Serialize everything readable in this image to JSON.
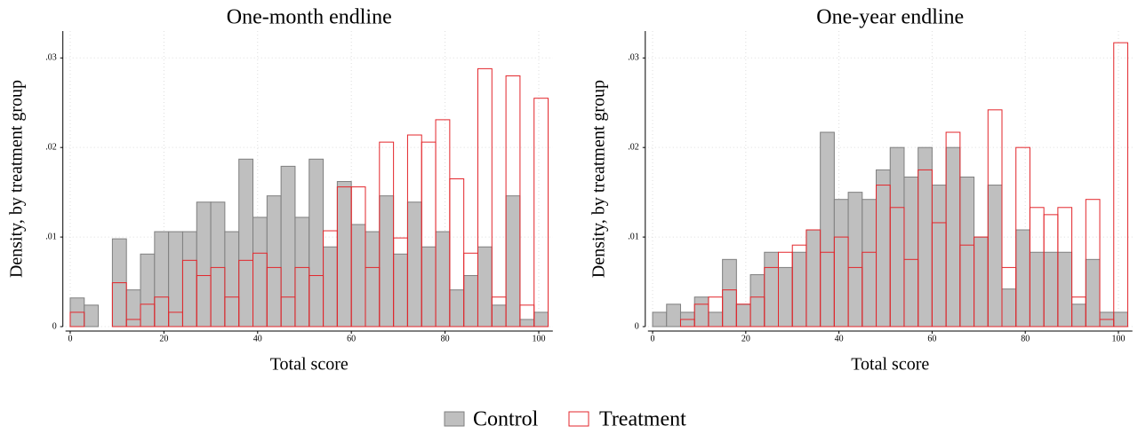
{
  "chart_data": [
    {
      "type": "histogram",
      "title": "One-month endline",
      "xlabel": "Total score",
      "ylabel": "Density, by treatment group",
      "bins": [
        0,
        3,
        6,
        9,
        12,
        15,
        18,
        21,
        24,
        27,
        30,
        33,
        36,
        39,
        42,
        45,
        48,
        51,
        54,
        57,
        60,
        63,
        66,
        69,
        72,
        75,
        78,
        81,
        84,
        87,
        90,
        93,
        96,
        99,
        102
      ],
      "series": [
        {
          "name": "Control",
          "color": "#7f7f7f",
          "fill": "#bfbfbf",
          "values": [
            0.0032,
            0.0024,
            0,
            0.0098,
            0.0041,
            0.0081,
            0.0106,
            0.0106,
            0.0106,
            0.0139,
            0.0139,
            0.0106,
            0.0187,
            0.0122,
            0.0146,
            0.0179,
            0.0122,
            0.0187,
            0.0089,
            0.0162,
            0.0114,
            0.0106,
            0.0146,
            0.0081,
            0.0139,
            0.0089,
            0.0106,
            0.0041,
            0.0057,
            0.0089,
            0.0024,
            0.0146,
            0.0008,
            0.0016
          ]
        },
        {
          "name": "Treatment",
          "color": "#e3262b",
          "fill": "none",
          "values": [
            0.0016,
            0,
            0,
            0.0049,
            0.0008,
            0.0025,
            0.0033,
            0.0016,
            0.0074,
            0.0057,
            0.0066,
            0.0033,
            0.0074,
            0.0082,
            0.0066,
            0.0033,
            0.0066,
            0.0057,
            0.0107,
            0.0156,
            0.0156,
            0.0066,
            0.0206,
            0.0099,
            0.0214,
            0.0206,
            0.0231,
            0.0165,
            0.0082,
            0.0288,
            0.0033,
            0.028,
            0.0024,
            0.0255
          ]
        }
      ],
      "xlim": [
        -1,
        103
      ],
      "ylim": [
        0,
        0.033
      ],
      "xticks": [
        0,
        20,
        40,
        60,
        80,
        100
      ],
      "yticks": [
        0,
        {
          "value": 0.01,
          "label": ".01"
        },
        {
          "value": 0.02,
          "label": ".02"
        },
        {
          "value": 0.03,
          "label": ".03"
        }
      ],
      "grid": true
    },
    {
      "type": "histogram",
      "title": "One-year endline",
      "xlabel": "Total score",
      "ylabel": "Density, by treatment group",
      "bins": [
        0,
        3,
        6,
        9,
        12,
        15,
        18,
        21,
        24,
        27,
        30,
        33,
        36,
        39,
        42,
        45,
        48,
        51,
        54,
        57,
        60,
        63,
        66,
        69,
        72,
        75,
        78,
        81,
        84,
        87,
        90,
        93,
        96,
        99,
        102
      ],
      "series": [
        {
          "color": "#7f7f7f",
          "fill": "#bfbfbf",
          "values": [
            0.0016,
            0.0025,
            0.0016,
            0.0033,
            0.0016,
            0.0075,
            0.0025,
            0.0058,
            0.0083,
            0.0066,
            0.0083,
            0.0108,
            0.0217,
            0.0142,
            0.015,
            0.0142,
            0.0175,
            0.02,
            0.0167,
            0.02,
            0.0158,
            0.02,
            0.0167,
            0.01,
            0.0158,
            0.0042,
            0.0108,
            0.0083,
            0.0083,
            0.0083,
            0.0025,
            0.0075,
            0.0016,
            0.0016
          ]
        },
        {
          "color": "#e3262b",
          "fill": "none",
          "values": [
            0,
            0,
            0.0008,
            0.0025,
            0.0033,
            0.0041,
            0.0025,
            0.0033,
            0.0066,
            0.0083,
            0.0091,
            0.0108,
            0.0083,
            0.01,
            0.0066,
            0.0083,
            0.0158,
            0.0133,
            0.0075,
            0.0175,
            0.0116,
            0.0217,
            0.0091,
            0.01,
            0.0242,
            0.0066,
            0.02,
            0.0133,
            0.0125,
            0.0133,
            0.0033,
            0.0142,
            0.0008,
            0.0317
          ]
        }
      ],
      "xlim": [
        -1,
        103
      ],
      "ylim": [
        0,
        0.033
      ],
      "xticks": [
        0,
        20,
        40,
        60,
        80,
        100
      ],
      "yticks": [
        0,
        {
          "value": 0.01,
          "label": ".01"
        },
        {
          "value": 0.02,
          "label": ".02"
        },
        {
          "value": 0.03,
          "label": ".03"
        }
      ],
      "grid": true
    }
  ]
}
